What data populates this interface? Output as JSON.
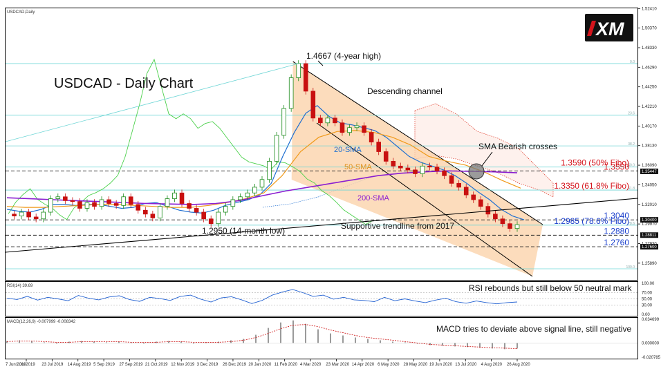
{
  "window": {
    "symbol_label": "USDCAD,Daily",
    "rsi_label": "RSI(14) 39.69",
    "macd_label": "MACD(12,26,9) -0.007999 -0.008342"
  },
  "logo": {
    "text": "XM",
    "bg": "#111111",
    "accent": "#d4141c"
  },
  "colors": {
    "price_up": "#1a8a1a",
    "price_down": "#c81010",
    "sma20": "#1f6fd1",
    "sma50": "#f09a1a",
    "sma200": "#8b1fd1",
    "chikou": "#4dd14d",
    "cloud": "#e04030",
    "channel_fill": "#fbd3ab",
    "fib_line": "#6fd6d6",
    "rsi_line": "#1f5fd1",
    "macd_hist": "#9a9a9a",
    "macd_signal": "#d02020"
  },
  "annotations": {
    "chart_title": "USDCAD - Daily Chart",
    "high": "1.4667 (4-year high)",
    "channel": "Descending channel",
    "sma_cross": "SMA Bearish crosses",
    "sma20": "20-SMA",
    "sma50": "50-SMA",
    "sma200": "200-SMA",
    "trendline": "Supportive trendline from 2017",
    "low": "1.2950 (14-month low)",
    "rsi_note": "RSI rebounds but still below 50 neutral mark",
    "macd_note": "MACD tries to deviate above signal line, still negative"
  },
  "levels": [
    {
      "label": "1.3590 (50% Fibo)",
      "value": 1.359,
      "color": "#d4141c"
    },
    {
      "label": "1.3550",
      "value": 1.355,
      "color": "#d4141c"
    },
    {
      "label": "1.3350 (61.8% Fibo)",
      "value": 1.335,
      "color": "#d4141c"
    },
    {
      "label": "1.3040",
      "value": 1.304,
      "color": "#1a3fcc"
    },
    {
      "label": "1.2985  (78.6% Fibo)",
      "value": 1.2985,
      "color": "#1a3fcc"
    },
    {
      "label": "1.2880",
      "value": 1.288,
      "color": "#1a3fcc"
    },
    {
      "label": "1.2760",
      "value": 1.276,
      "color": "#1a3fcc"
    }
  ],
  "fib_labels": [
    "0.0",
    "23.6",
    "38.2",
    "50.0",
    "61.8",
    "78.6",
    "100.0"
  ],
  "chart_data": {
    "type": "line",
    "symbol": "USDCAD",
    "timeframe": "Daily",
    "price_axis": {
      "ylim": [
        1.2415,
        1.5243
      ],
      "ticks": [
        "1.52410",
        "1.50370",
        "1.48330",
        "1.46290",
        "1.44250",
        "1.42210",
        "1.40170",
        "1.38130",
        "1.36090",
        "1.34050",
        "1.32010",
        "1.29970",
        "1.27930",
        "1.25890"
      ]
    },
    "x_ticks": [
      "1 Jul 2019",
      "23 Jul 2019",
      "14 Aug 2019",
      "5 Sep 2019",
      "27 Sep 2019",
      "21 Oct 2019",
      "12 Nov 2019",
      "3 Dec 2019",
      "26 Dec 2019",
      "20 Jan 2020",
      "11 Feb 2020",
      "4 Mar 2020",
      "23 Mar 2020",
      "14 Apr 2020",
      "6 May 2020",
      "28 May 2020",
      "19 Jun 2020",
      "13 Jul 2020",
      "4 Aug 2020",
      "26 Aug 2020"
    ],
    "price_tags": [
      {
        "label": "1.35447",
        "value": 1.3545
      },
      {
        "label": "1.30400",
        "value": 1.304
      },
      {
        "label": "1.28811",
        "value": 1.2881
      },
      {
        "label": "1.27600",
        "value": 1.276
      }
    ],
    "series": [
      {
        "name": "USDCAD",
        "values": [
          1.31,
          1.308,
          1.312,
          1.307,
          1.305,
          1.312,
          1.326,
          1.328,
          1.324,
          1.323,
          1.316,
          1.322,
          1.318,
          1.325,
          1.321,
          1.319,
          1.328,
          1.32,
          1.314,
          1.31,
          1.306,
          1.318,
          1.326,
          1.332,
          1.321,
          1.316,
          1.312,
          1.305,
          1.3,
          1.312,
          1.318,
          1.325,
          1.328,
          1.332,
          1.338,
          1.346,
          1.365,
          1.392,
          1.42,
          1.452,
          1.4667,
          1.438,
          1.41,
          1.405,
          1.41,
          1.405,
          1.395,
          1.4,
          1.402,
          1.395,
          1.385,
          1.375,
          1.365,
          1.36,
          1.358,
          1.356,
          1.352,
          1.36,
          1.359,
          1.355,
          1.35,
          1.342,
          1.338,
          1.33,
          1.325,
          1.318,
          1.31,
          1.305,
          1.3,
          1.295,
          1.299
        ]
      },
      {
        "name": "20-SMA",
        "values": [
          1.315,
          1.313,
          1.312,
          1.315,
          1.32,
          1.32,
          1.319,
          1.32,
          1.32,
          1.318,
          1.316,
          1.317,
          1.321,
          1.322,
          1.318,
          1.314,
          1.312,
          1.311,
          1.314,
          1.319,
          1.322,
          1.325,
          1.33,
          1.342,
          1.37,
          1.395,
          1.415,
          1.423,
          1.412,
          1.405,
          1.403,
          1.4,
          1.397,
          1.39,
          1.38,
          1.37,
          1.364,
          1.36,
          1.356,
          1.35,
          1.342,
          1.333,
          1.325,
          1.315,
          1.308,
          1.304
        ]
      },
      {
        "name": "50-SMA",
        "values": [
          1.318,
          1.317,
          1.317,
          1.318,
          1.319,
          1.32,
          1.32,
          1.319,
          1.318,
          1.317,
          1.317,
          1.319,
          1.322,
          1.326,
          1.332,
          1.35,
          1.375,
          1.39,
          1.396,
          1.397,
          1.395,
          1.39,
          1.382,
          1.37,
          1.365,
          1.361,
          1.354,
          1.345,
          1.337
        ]
      },
      {
        "name": "200-SMA",
        "values": [
          1.327,
          1.326,
          1.325,
          1.324,
          1.323,
          1.322,
          1.321,
          1.3205,
          1.32,
          1.321,
          1.324,
          1.329,
          1.334,
          1.338,
          1.342,
          1.346,
          1.35,
          1.3525,
          1.354,
          1.355,
          1.3545,
          1.354,
          1.353
        ]
      }
    ],
    "rsi": {
      "name": "RSI(14)",
      "current": 39.69,
      "ticks": [
        "100.00",
        "70.00",
        "50.00",
        "30.00",
        "0.00"
      ],
      "values": [
        52,
        48,
        58,
        46,
        55,
        50,
        44,
        61,
        52,
        47,
        56,
        60,
        48,
        42,
        55,
        51,
        45,
        58,
        62,
        49,
        40,
        53,
        57,
        47,
        35,
        45,
        62,
        72,
        80,
        70,
        58,
        62,
        49,
        55,
        47,
        45,
        41,
        55,
        44,
        50,
        43,
        38,
        46,
        52,
        41,
        36,
        43,
        38,
        34,
        38,
        40
      ]
    },
    "macd": {
      "name": "MACD(12,26,9)",
      "main": -0.007999,
      "signal": -0.008342,
      "ticks": [
        "0.034699",
        "0.000000",
        "-0.020785"
      ],
      "histogram": [
        0.003,
        0.004,
        0.003,
        0.001,
        -0.001,
        0.002,
        0.003,
        0.002,
        0.001,
        0.002,
        0.001,
        -0.001,
        0.002,
        0.003,
        0.002,
        -0.001,
        0.001,
        0.002,
        0.004,
        0.006,
        0.012,
        0.022,
        0.03,
        0.033,
        0.028,
        0.02,
        0.014,
        0.011,
        0.008,
        0.006,
        0.004,
        0.002,
        0.001,
        -0.001,
        -0.003,
        -0.004,
        -0.005,
        -0.006,
        -0.007,
        -0.008,
        -0.009,
        -0.008
      ],
      "signal_values": [
        0.002,
        0.003,
        0.003,
        0.002,
        0.001,
        0.001,
        0.002,
        0.002,
        0.002,
        0.002,
        0.001,
        0.001,
        0.001,
        0.002,
        0.002,
        0.001,
        0.001,
        0.001,
        0.002,
        0.004,
        0.008,
        0.014,
        0.021,
        0.026,
        0.027,
        0.024,
        0.019,
        0.015,
        0.011,
        0.008,
        0.006,
        0.004,
        0.002,
        0.0,
        -0.002,
        -0.003,
        -0.004,
        -0.005,
        -0.006,
        -0.007,
        -0.0075,
        -0.0083
      ]
    }
  }
}
